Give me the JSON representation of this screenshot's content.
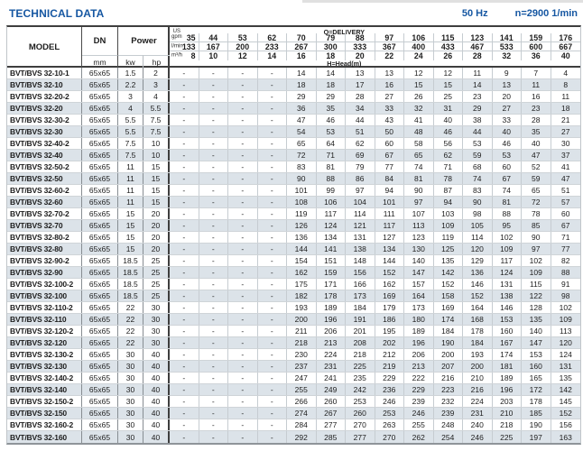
{
  "page": {
    "title": "TECHNICAL DATA",
    "frequency": "50 Hz",
    "speed": "n=2900 1/min"
  },
  "table": {
    "header": {
      "model": "MODEL",
      "dn": "DN",
      "dn_unit": "mm",
      "power": "Power",
      "power_unit_kw": "kw",
      "power_unit_hp": "hp"
    },
    "delivery": {
      "title": "Q=DELIVERY",
      "head_title": "H=Head(m)",
      "unit_rows": [
        {
          "unit": "US gpm",
          "label_lines": [
            "US",
            "gpm"
          ],
          "values": [
            "35",
            "44",
            "53",
            "62",
            "70",
            "79",
            "88",
            "97",
            "106",
            "115",
            "123",
            "141",
            "159",
            "176"
          ]
        },
        {
          "unit": "l/min",
          "label_lines": [
            "l/min"
          ],
          "values": [
            "133",
            "167",
            "200",
            "233",
            "267",
            "300",
            "333",
            "367",
            "400",
            "433",
            "467",
            "533",
            "600",
            "667"
          ]
        },
        {
          "unit": "m³/h",
          "label_lines": [
            "m³/h"
          ],
          "values": [
            "8",
            "10",
            "12",
            "14",
            "16",
            "18",
            "20",
            "22",
            "24",
            "26",
            "28",
            "32",
            "36",
            "40"
          ]
        }
      ]
    },
    "rows": [
      {
        "model": "BVT/BVS 32-10-1",
        "dn": "65x65",
        "kw": "1.5",
        "hp": "2",
        "head": [
          "-",
          "-",
          "-",
          "-",
          "14",
          "14",
          "13",
          "13",
          "12",
          "12",
          "11",
          "9",
          "7",
          "4"
        ]
      },
      {
        "model": "BVT/BVS 32-10",
        "dn": "65x65",
        "kw": "2.2",
        "hp": "3",
        "head": [
          "-",
          "-",
          "-",
          "-",
          "18",
          "18",
          "17",
          "16",
          "15",
          "15",
          "14",
          "13",
          "11",
          "8"
        ]
      },
      {
        "model": "BVT/BVS 32-20-2",
        "dn": "65x65",
        "kw": "3",
        "hp": "4",
        "head": [
          "-",
          "-",
          "-",
          "-",
          "29",
          "29",
          "28",
          "27",
          "26",
          "25",
          "23",
          "20",
          "16",
          "11"
        ]
      },
      {
        "model": "BVT/BVS 32-20",
        "dn": "65x65",
        "kw": "4",
        "hp": "5.5",
        "head": [
          "-",
          "-",
          "-",
          "-",
          "36",
          "35",
          "34",
          "33",
          "32",
          "31",
          "29",
          "27",
          "23",
          "18"
        ]
      },
      {
        "model": "BVT/BVS 32-30-2",
        "dn": "65x65",
        "kw": "5.5",
        "hp": "7.5",
        "head": [
          "-",
          "-",
          "-",
          "-",
          "47",
          "46",
          "44",
          "43",
          "41",
          "40",
          "38",
          "33",
          "28",
          "21"
        ]
      },
      {
        "model": "BVT/BVS 32-30",
        "dn": "65x65",
        "kw": "5.5",
        "hp": "7.5",
        "head": [
          "-",
          "-",
          "-",
          "-",
          "54",
          "53",
          "51",
          "50",
          "48",
          "46",
          "44",
          "40",
          "35",
          "27"
        ]
      },
      {
        "model": "BVT/BVS 32-40-2",
        "dn": "65x65",
        "kw": "7.5",
        "hp": "10",
        "head": [
          "-",
          "-",
          "-",
          "-",
          "65",
          "64",
          "62",
          "60",
          "58",
          "56",
          "53",
          "46",
          "40",
          "30"
        ]
      },
      {
        "model": "BVT/BVS 32-40",
        "dn": "65x65",
        "kw": "7.5",
        "hp": "10",
        "head": [
          "-",
          "-",
          "-",
          "-",
          "72",
          "71",
          "69",
          "67",
          "65",
          "62",
          "59",
          "53",
          "47",
          "37"
        ]
      },
      {
        "model": "BVT/BVS 32-50-2",
        "dn": "65x65",
        "kw": "11",
        "hp": "15",
        "head": [
          "-",
          "-",
          "-",
          "-",
          "83",
          "81",
          "79",
          "77",
          "74",
          "71",
          "68",
          "60",
          "52",
          "41"
        ]
      },
      {
        "model": "BVT/BVS 32-50",
        "dn": "65x65",
        "kw": "11",
        "hp": "15",
        "head": [
          "-",
          "-",
          "-",
          "-",
          "90",
          "88",
          "86",
          "84",
          "81",
          "78",
          "74",
          "67",
          "59",
          "47"
        ]
      },
      {
        "model": "BVT/BVS 32-60-2",
        "dn": "65x65",
        "kw": "11",
        "hp": "15",
        "head": [
          "-",
          "-",
          "-",
          "-",
          "101",
          "99",
          "97",
          "94",
          "90",
          "87",
          "83",
          "74",
          "65",
          "51"
        ]
      },
      {
        "model": "BVT/BVS 32-60",
        "dn": "65x65",
        "kw": "11",
        "hp": "15",
        "head": [
          "-",
          "-",
          "-",
          "-",
          "108",
          "106",
          "104",
          "101",
          "97",
          "94",
          "90",
          "81",
          "72",
          "57"
        ]
      },
      {
        "model": "BVT/BVS 32-70-2",
        "dn": "65x65",
        "kw": "15",
        "hp": "20",
        "head": [
          "-",
          "-",
          "-",
          "-",
          "119",
          "117",
          "114",
          "111",
          "107",
          "103",
          "98",
          "88",
          "78",
          "60"
        ]
      },
      {
        "model": "BVT/BVS 32-70",
        "dn": "65x65",
        "kw": "15",
        "hp": "20",
        "head": [
          "-",
          "-",
          "-",
          "-",
          "126",
          "124",
          "121",
          "117",
          "113",
          "109",
          "105",
          "95",
          "85",
          "67"
        ]
      },
      {
        "model": "BVT/BVS 32-80-2",
        "dn": "65x65",
        "kw": "15",
        "hp": "20",
        "head": [
          "-",
          "-",
          "-",
          "-",
          "136",
          "134",
          "131",
          "127",
          "123",
          "119",
          "114",
          "102",
          "90",
          "71"
        ]
      },
      {
        "model": "BVT/BVS 32-80",
        "dn": "65x65",
        "kw": "15",
        "hp": "20",
        "head": [
          "-",
          "-",
          "-",
          "-",
          "144",
          "141",
          "138",
          "134",
          "130",
          "125",
          "120",
          "109",
          "97",
          "77"
        ]
      },
      {
        "model": "BVT/BVS 32-90-2",
        "dn": "65x65",
        "kw": "18.5",
        "hp": "25",
        "head": [
          "-",
          "-",
          "-",
          "-",
          "154",
          "151",
          "148",
          "144",
          "140",
          "135",
          "129",
          "117",
          "102",
          "82"
        ]
      },
      {
        "model": "BVT/BVS 32-90",
        "dn": "65x65",
        "kw": "18.5",
        "hp": "25",
        "head": [
          "-",
          "-",
          "-",
          "-",
          "162",
          "159",
          "156",
          "152",
          "147",
          "142",
          "136",
          "124",
          "109",
          "88"
        ]
      },
      {
        "model": "BVT/BVS 32-100-2",
        "dn": "65x65",
        "kw": "18.5",
        "hp": "25",
        "head": [
          "-",
          "-",
          "-",
          "-",
          "175",
          "171",
          "166",
          "162",
          "157",
          "152",
          "146",
          "131",
          "115",
          "91"
        ]
      },
      {
        "model": "BVT/BVS 32-100",
        "dn": "65x65",
        "kw": "18.5",
        "hp": "25",
        "head": [
          "-",
          "-",
          "-",
          "-",
          "182",
          "178",
          "173",
          "169",
          "164",
          "158",
          "152",
          "138",
          "122",
          "98"
        ]
      },
      {
        "model": "BVT/BVS 32-110-2",
        "dn": "65x65",
        "kw": "22",
        "hp": "30",
        "head": [
          "-",
          "-",
          "-",
          "-",
          "193",
          "189",
          "184",
          "179",
          "173",
          "169",
          "164",
          "146",
          "128",
          "102"
        ]
      },
      {
        "model": "BVT/BVS 32-110",
        "dn": "65x65",
        "kw": "22",
        "hp": "30",
        "head": [
          "-",
          "-",
          "-",
          "-",
          "200",
          "196",
          "191",
          "186",
          "180",
          "174",
          "168",
          "153",
          "135",
          "109"
        ]
      },
      {
        "model": "BVT/BVS 32-120-2",
        "dn": "65x65",
        "kw": "22",
        "hp": "30",
        "head": [
          "-",
          "-",
          "-",
          "-",
          "211",
          "206",
          "201",
          "195",
          "189",
          "184",
          "178",
          "160",
          "140",
          "113"
        ]
      },
      {
        "model": "BVT/BVS 32-120",
        "dn": "65x65",
        "kw": "22",
        "hp": "30",
        "head": [
          "-",
          "-",
          "-",
          "-",
          "218",
          "213",
          "208",
          "202",
          "196",
          "190",
          "184",
          "167",
          "147",
          "120"
        ]
      },
      {
        "model": "BVT/BVS 32-130-2",
        "dn": "65x65",
        "kw": "30",
        "hp": "40",
        "head": [
          "-",
          "-",
          "-",
          "-",
          "230",
          "224",
          "218",
          "212",
          "206",
          "200",
          "193",
          "174",
          "153",
          "124"
        ]
      },
      {
        "model": "BVT/BVS 32-130",
        "dn": "65x65",
        "kw": "30",
        "hp": "40",
        "head": [
          "-",
          "-",
          "-",
          "-",
          "237",
          "231",
          "225",
          "219",
          "213",
          "207",
          "200",
          "181",
          "160",
          "131"
        ]
      },
      {
        "model": "BVT/BVS 32-140-2",
        "dn": "65x65",
        "kw": "30",
        "hp": "40",
        "head": [
          "-",
          "-",
          "-",
          "-",
          "247",
          "241",
          "235",
          "229",
          "222",
          "216",
          "210",
          "189",
          "165",
          "135"
        ]
      },
      {
        "model": "BVT/BVS 32-140",
        "dn": "65x65",
        "kw": "30",
        "hp": "40",
        "head": [
          "-",
          "-",
          "-",
          "-",
          "255",
          "249",
          "242",
          "236",
          "229",
          "223",
          "216",
          "196",
          "172",
          "142"
        ]
      },
      {
        "model": "BVT/BVS 32-150-2",
        "dn": "65x65",
        "kw": "30",
        "hp": "40",
        "head": [
          "-",
          "-",
          "-",
          "-",
          "266",
          "260",
          "253",
          "246",
          "239",
          "232",
          "224",
          "203",
          "178",
          "145"
        ]
      },
      {
        "model": "BVT/BVS 32-150",
        "dn": "65x65",
        "kw": "30",
        "hp": "40",
        "head": [
          "-",
          "-",
          "-",
          "-",
          "274",
          "267",
          "260",
          "253",
          "246",
          "239",
          "231",
          "210",
          "185",
          "152"
        ]
      },
      {
        "model": "BVT/BVS 32-160-2",
        "dn": "65x65",
        "kw": "30",
        "hp": "40",
        "head": [
          "-",
          "-",
          "-",
          "-",
          "284",
          "277",
          "270",
          "263",
          "255",
          "248",
          "240",
          "218",
          "190",
          "156"
        ]
      },
      {
        "model": "BVT/BVS 32-160",
        "dn": "65x65",
        "kw": "30",
        "hp": "40",
        "head": [
          "-",
          "-",
          "-",
          "-",
          "292",
          "285",
          "277",
          "270",
          "262",
          "254",
          "246",
          "225",
          "197",
          "163"
        ]
      }
    ]
  }
}
